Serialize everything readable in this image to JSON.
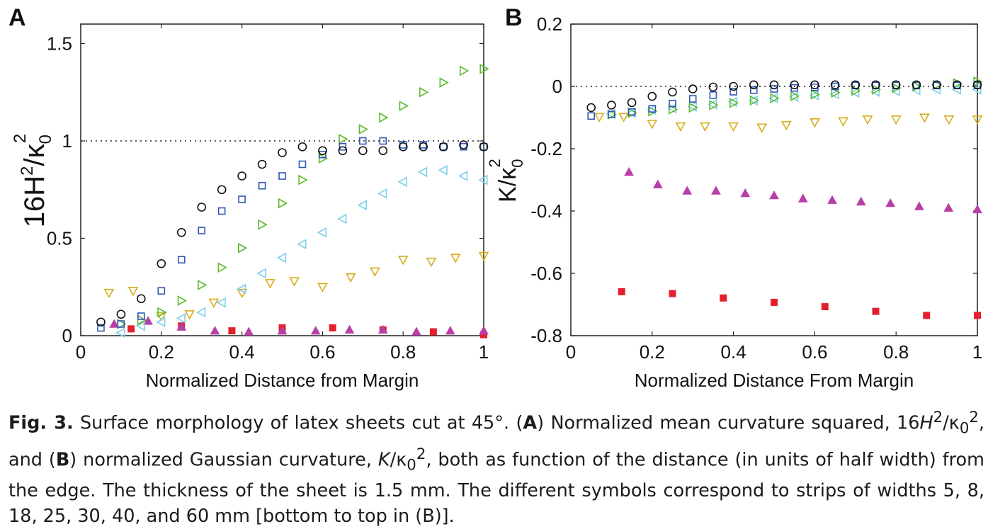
{
  "chart_data": [
    {
      "panel": "A",
      "type": "scatter",
      "xlabel": "Normalized Distance from Margin",
      "ylabel": "16H²/κ₀²",
      "xlim": [
        0,
        1
      ],
      "ylim": [
        0,
        1.6
      ],
      "xticks": [
        "0",
        "0.2",
        "0.4",
        "0.6",
        "0.8",
        "1"
      ],
      "yticks": [
        "0",
        "0.5",
        "1",
        "1.5"
      ],
      "reference_line": 1,
      "series": [
        {
          "marker": "square-filled",
          "color": "#e4202e",
          "x": [
            0.125,
            0.25,
            0.375,
            0.5,
            0.625,
            0.75,
            0.875,
            1.0
          ],
          "y": [
            0.035,
            0.05,
            0.025,
            0.04,
            0.04,
            0.03,
            0.02,
            0.005
          ]
        },
        {
          "marker": "triangle-up-filled",
          "color": "#b83ea8",
          "x": [
            0.083,
            0.167,
            0.25,
            0.333,
            0.417,
            0.5,
            0.583,
            0.667,
            0.75,
            0.833,
            0.917,
            1.0
          ],
          "y": [
            0.06,
            0.075,
            0.045,
            0.025,
            0.02,
            0.025,
            0.025,
            0.03,
            0.03,
            0.02,
            0.025,
            0.025
          ]
        },
        {
          "marker": "triangle-down",
          "color": "#d7ad1a",
          "x": [
            0.07,
            0.13,
            0.2,
            0.27,
            0.33,
            0.4,
            0.47,
            0.53,
            0.6,
            0.67,
            0.73,
            0.8,
            0.87,
            0.93,
            1.0
          ],
          "y": [
            0.22,
            0.23,
            0.1,
            0.11,
            0.17,
            0.22,
            0.27,
            0.28,
            0.25,
            0.3,
            0.33,
            0.39,
            0.38,
            0.4,
            0.41
          ]
        },
        {
          "marker": "triangle-left",
          "color": "#7fd0e8",
          "x": [
            0.1,
            0.15,
            0.2,
            0.25,
            0.3,
            0.35,
            0.4,
            0.45,
            0.5,
            0.55,
            0.6,
            0.65,
            0.7,
            0.75,
            0.8,
            0.85,
            0.9,
            0.95,
            1.0
          ],
          "y": [
            0.015,
            0.05,
            0.07,
            0.09,
            0.12,
            0.17,
            0.24,
            0.32,
            0.4,
            0.47,
            0.53,
            0.6,
            0.67,
            0.73,
            0.79,
            0.84,
            0.85,
            0.82,
            0.8
          ]
        },
        {
          "marker": "triangle-right",
          "color": "#5dbb2e",
          "x": [
            0.1,
            0.15,
            0.2,
            0.25,
            0.3,
            0.35,
            0.4,
            0.45,
            0.5,
            0.55,
            0.6,
            0.65,
            0.7,
            0.75,
            0.8,
            0.85,
            0.9,
            0.95,
            1.0
          ],
          "y": [
            0.06,
            0.08,
            0.12,
            0.18,
            0.26,
            0.35,
            0.45,
            0.57,
            0.68,
            0.8,
            0.91,
            1.01,
            1.06,
            1.12,
            1.18,
            1.25,
            1.3,
            1.36,
            1.37
          ]
        },
        {
          "marker": "square",
          "color": "#2f55b8",
          "x": [
            0.05,
            0.1,
            0.15,
            0.2,
            0.25,
            0.3,
            0.35,
            0.4,
            0.45,
            0.5,
            0.55,
            0.6,
            0.65,
            0.7,
            0.75,
            0.8,
            0.85,
            0.9,
            0.95,
            1.0
          ],
          "y": [
            0.04,
            0.06,
            0.1,
            0.23,
            0.39,
            0.54,
            0.64,
            0.7,
            0.77,
            0.82,
            0.88,
            0.93,
            0.97,
            1.0,
            1.0,
            0.98,
            0.98,
            0.97,
            0.97,
            0.97
          ]
        },
        {
          "marker": "circle",
          "color": "#111111",
          "x": [
            0.05,
            0.1,
            0.15,
            0.2,
            0.25,
            0.3,
            0.35,
            0.4,
            0.45,
            0.5,
            0.55,
            0.6,
            0.65,
            0.7,
            0.75,
            0.8,
            0.85,
            0.9,
            0.95,
            1.0
          ],
          "y": [
            0.07,
            0.11,
            0.19,
            0.37,
            0.53,
            0.66,
            0.75,
            0.82,
            0.88,
            0.94,
            0.97,
            0.95,
            0.95,
            0.95,
            0.95,
            0.97,
            0.97,
            0.97,
            0.98,
            0.97
          ]
        }
      ]
    },
    {
      "panel": "B",
      "type": "scatter",
      "xlabel": "Normalized Distance From Margin",
      "ylabel": "K/κ₀²",
      "xlim": [
        0,
        1
      ],
      "ylim": [
        -0.8,
        0.2
      ],
      "xticks": [
        "0",
        "0.2",
        "0.4",
        "0.6",
        "0.8",
        "1"
      ],
      "yticks": [
        "0.2",
        "0",
        "-0.2",
        "-0.4",
        "-0.6",
        "-0.8"
      ],
      "reference_line": 0,
      "series": [
        {
          "marker": "square-filled",
          "color": "#e4202e",
          "x": [
            0.125,
            0.25,
            0.375,
            0.5,
            0.625,
            0.75,
            0.875,
            1.0
          ],
          "y": [
            -0.659,
            -0.665,
            -0.679,
            -0.693,
            -0.707,
            -0.722,
            -0.735,
            -0.735
          ]
        },
        {
          "marker": "triangle-up-filled",
          "color": "#b83ea8",
          "x": [
            0.143,
            0.214,
            0.286,
            0.357,
            0.429,
            0.5,
            0.571,
            0.643,
            0.714,
            0.786,
            0.857,
            0.929,
            1.0
          ],
          "y": [
            -0.275,
            -0.315,
            -0.335,
            -0.335,
            -0.343,
            -0.35,
            -0.36,
            -0.365,
            -0.37,
            -0.375,
            -0.385,
            -0.39,
            -0.395
          ]
        },
        {
          "marker": "triangle-down",
          "color": "#d7ad1a",
          "x": [
            0.07,
            0.13,
            0.2,
            0.27,
            0.33,
            0.4,
            0.47,
            0.53,
            0.6,
            0.67,
            0.73,
            0.8,
            0.87,
            0.93,
            1.0
          ],
          "y": [
            -0.098,
            -0.098,
            -0.12,
            -0.128,
            -0.128,
            -0.128,
            -0.132,
            -0.124,
            -0.115,
            -0.112,
            -0.106,
            -0.106,
            -0.1,
            -0.106,
            -0.106
          ]
        },
        {
          "marker": "triangle-left",
          "color": "#7fd0e8",
          "x": [
            0.1,
            0.15,
            0.2,
            0.25,
            0.3,
            0.35,
            0.4,
            0.45,
            0.5,
            0.55,
            0.6,
            0.65,
            0.7,
            0.75,
            0.8,
            0.85,
            0.9,
            0.95,
            1.0
          ],
          "y": [
            -0.088,
            -0.085,
            -0.075,
            -0.07,
            -0.065,
            -0.058,
            -0.05,
            -0.045,
            -0.038,
            -0.033,
            -0.029,
            -0.025,
            -0.02,
            -0.017,
            -0.015,
            -0.012,
            -0.01,
            -0.01,
            -0.01
          ]
        },
        {
          "marker": "triangle-right",
          "color": "#5dbb2e",
          "x": [
            0.1,
            0.15,
            0.2,
            0.25,
            0.3,
            0.35,
            0.4,
            0.45,
            0.5,
            0.55,
            0.6,
            0.65,
            0.7,
            0.75,
            0.8,
            0.85,
            0.9,
            0.95,
            1.0
          ],
          "y": [
            -0.09,
            -0.085,
            -0.08,
            -0.074,
            -0.068,
            -0.06,
            -0.053,
            -0.045,
            -0.038,
            -0.031,
            -0.026,
            -0.02,
            -0.014,
            -0.01,
            -0.005,
            0.0,
            0.005,
            0.01,
            0.015
          ]
        },
        {
          "marker": "square",
          "color": "#2f55b8",
          "x": [
            0.05,
            0.1,
            0.15,
            0.2,
            0.25,
            0.3,
            0.35,
            0.4,
            0.45,
            0.5,
            0.55,
            0.6,
            0.65,
            0.7,
            0.75,
            0.8,
            0.85,
            0.9,
            0.95,
            1.0
          ],
          "y": [
            -0.095,
            -0.09,
            -0.082,
            -0.072,
            -0.055,
            -0.04,
            -0.028,
            -0.017,
            -0.012,
            -0.008,
            -0.005,
            -0.003,
            0.0,
            0.003,
            0.003,
            0.003,
            0.003,
            0.003,
            0.003,
            0.003
          ]
        },
        {
          "marker": "circle",
          "color": "#111111",
          "x": [
            0.05,
            0.1,
            0.15,
            0.2,
            0.25,
            0.3,
            0.35,
            0.4,
            0.45,
            0.5,
            0.55,
            0.6,
            0.65,
            0.7,
            0.75,
            0.8,
            0.85,
            0.9,
            0.95,
            1.0
          ],
          "y": [
            -0.068,
            -0.06,
            -0.052,
            -0.032,
            -0.018,
            -0.008,
            -0.002,
            0.0,
            0.005,
            0.005,
            0.005,
            0.005,
            0.005,
            0.005,
            0.005,
            0.005,
            0.005,
            0.005,
            0.005,
            0.005
          ]
        }
      ]
    }
  ],
  "caption": {
    "fig_label": "Fig. 3.",
    "part1": " Surface morphology of latex sheets cut at 45°. (",
    "bold_a": "A",
    "part2": ") Normalized mean curvature squared, 16",
    "h": "H",
    "part3": "/κ",
    "part4": ", and (",
    "bold_b": "B",
    "part5": ") normalized Gaussian curvature, ",
    "k": "K",
    "part6": "/κ",
    "part7": ", both as function of the distance (in units of half width) from the edge. The thickness of the sheet is 1.5 mm. The different symbols correspond to strips of widths 5, 8, 18, 25, 30, 40, and 60 mm [bottom to top in (B)].",
    "sup2": "2",
    "sub0": "0"
  }
}
